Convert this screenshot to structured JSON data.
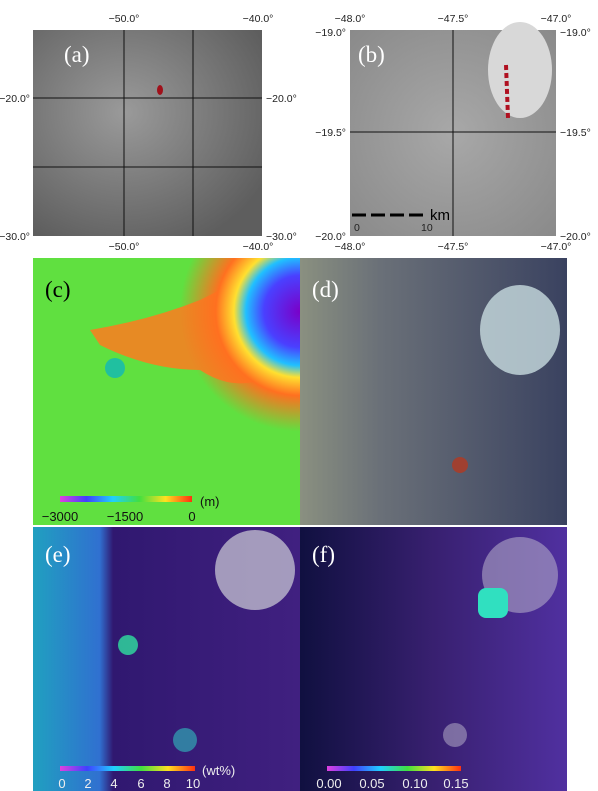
{
  "panels": [
    {
      "label": "(a)",
      "top_ticks": [
        "−50.0°",
        "−40.0°"
      ],
      "bottom_ticks": [
        "−50.0°",
        "−40.0°"
      ],
      "left_ticks": [
        "−20.0°",
        "−30.0°"
      ],
      "right_ticks": [
        "−20.0°",
        "−30.0°"
      ]
    },
    {
      "label": "(b)",
      "top_ticks": [
        "−48.0°",
        "−47.5°",
        "−47.0°"
      ],
      "bottom_ticks": [
        "−48.0°",
        "−47.5°",
        "−47.0°"
      ],
      "left_ticks": [
        "−19.0°",
        "−19.5°",
        "−20.0°"
      ],
      "right_ticks": [
        "−19.0°",
        "−19.5°",
        "−20.0°"
      ],
      "scale_bar": {
        "unit": "km",
        "labels": [
          "0",
          "10"
        ]
      }
    },
    {
      "label": "(c)",
      "colorbar": {
        "labels": [
          "−3000",
          "−1500",
          "0"
        ],
        "unit": "(m)"
      }
    },
    {
      "label": "(d)"
    },
    {
      "label": "(e)",
      "colorbar": {
        "labels": [
          "0",
          "2",
          "4",
          "6",
          "8",
          "10"
        ],
        "unit": "(wt%)"
      }
    },
    {
      "label": "(f)",
      "colorbar": {
        "labels": [
          "0.00",
          "0.05",
          "0.10",
          "0.15"
        ]
      }
    }
  ]
}
